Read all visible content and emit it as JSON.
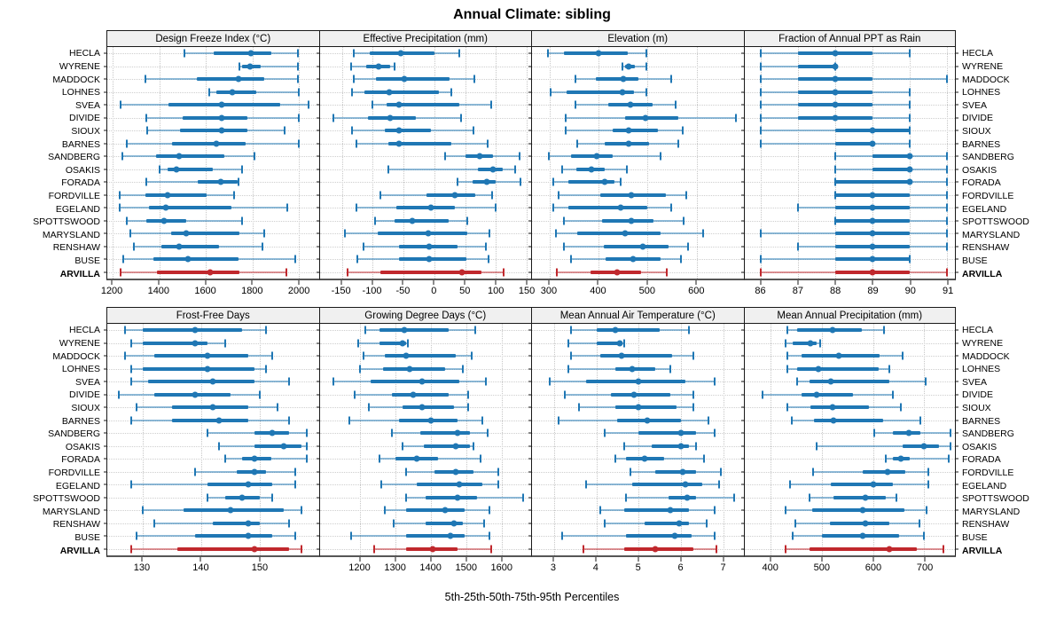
{
  "title": "Annual Climate: sibling",
  "footer": "5th-25th-50th-75th-95th Percentiles",
  "percentiles": [
    5,
    25,
    50,
    75,
    95
  ],
  "highlight_station": "ARVILLA",
  "colors": {
    "series_blue": "#1F77B4",
    "highlight_red": "#C0282D",
    "panel_header_bg": "#F0F0F0",
    "panel_border": "#1A1A1A",
    "gridline": "#C7C7C7"
  },
  "stations": [
    "HECLA",
    "WYRENE",
    "MADDOCK",
    "LOHNES",
    "SVEA",
    "DIVIDE",
    "SIOUX",
    "BARNES",
    "SANDBERG",
    "OSAKIS",
    "FORADA",
    "FORDVILLE",
    "EGELAND",
    "SPOTTSWOOD",
    "MARYSLAND",
    "RENSHAW",
    "BUSE",
    "ARVILLA"
  ],
  "chart_data": [
    {
      "type": "interval-percentile",
      "title": "Design Freeze Index (°C)",
      "xlim": [
        1177,
        2085
      ],
      "ticks": [
        1200,
        1400,
        1600,
        1800,
        2000
      ],
      "tick_labels": [
        "1200",
        "1400",
        "1600",
        "1800",
        "2000"
      ],
      "values": [
        [
          1510,
          1635,
          1795,
          1880,
          1995
        ],
        [
          1745,
          1755,
          1790,
          1835,
          1995
        ],
        [
          1340,
          1560,
          1740,
          1850,
          1995
        ],
        [
          1615,
          1645,
          1715,
          1815,
          2000
        ],
        [
          1235,
          1440,
          1670,
          1920,
          2040
        ],
        [
          1345,
          1500,
          1670,
          1780,
          2000
        ],
        [
          1350,
          1490,
          1670,
          1780,
          1940
        ],
        [
          1260,
          1455,
          1645,
          1770,
          2000
        ],
        [
          1240,
          1385,
          1485,
          1680,
          1810
        ],
        [
          1400,
          1435,
          1475,
          1630,
          1755
        ],
        [
          1345,
          1565,
          1665,
          1735,
          1740
        ],
        [
          1230,
          1340,
          1435,
          1605,
          1720
        ],
        [
          1230,
          1355,
          1430,
          1710,
          1950
        ],
        [
          1260,
          1345,
          1420,
          1515,
          1755
        ],
        [
          1275,
          1450,
          1515,
          1745,
          1850
        ],
        [
          1290,
          1410,
          1485,
          1655,
          1845
        ],
        [
          1245,
          1375,
          1525,
          1740,
          1985
        ],
        [
          1235,
          1390,
          1620,
          1745,
          1945
        ]
      ]
    },
    {
      "type": "interval-percentile",
      "title": "Effective Precipitation (mm)",
      "xlim": [
        -186,
        157
      ],
      "ticks": [
        -150,
        -100,
        -50,
        0,
        50,
        100,
        150
      ],
      "tick_labels": [
        "-150",
        "-100",
        "-50",
        "0",
        "50",
        "100",
        "150"
      ],
      "values": [
        [
          -130,
          -105,
          -55,
          0,
          40
        ],
        [
          -135,
          -110,
          -90,
          -72,
          -65
        ],
        [
          -130,
          -95,
          -48,
          25,
          65
        ],
        [
          -133,
          -113,
          -73,
          8,
          27
        ],
        [
          -100,
          -78,
          -57,
          40,
          92
        ],
        [
          -163,
          -108,
          -72,
          -30,
          43
        ],
        [
          -133,
          -80,
          -57,
          -5,
          63
        ],
        [
          -127,
          -75,
          -57,
          27,
          87
        ],
        [
          18,
          51,
          74,
          95,
          139
        ],
        [
          -74,
          70,
          95,
          111,
          131
        ],
        [
          38,
          62,
          85,
          99,
          140
        ],
        [
          -88,
          -12,
          34,
          67,
          94
        ],
        [
          -127,
          -61,
          -5,
          33,
          100
        ],
        [
          -96,
          -64,
          -36,
          23,
          54
        ],
        [
          -145,
          -92,
          -10,
          53,
          90
        ],
        [
          -115,
          -57,
          -8,
          37,
          83
        ],
        [
          -125,
          -57,
          -8,
          52,
          88
        ],
        [
          -140,
          -88,
          45,
          77,
          113
        ]
      ]
    },
    {
      "type": "interval-percentile",
      "title": "Elevation (m)",
      "xlim": [
        264,
        696
      ],
      "ticks": [
        300,
        400,
        500,
        600
      ],
      "tick_labels": [
        "300",
        "400",
        "500",
        "600"
      ],
      "values": [
        [
          297,
          330,
          400,
          460,
          497
        ],
        [
          448,
          455,
          462,
          475,
          498
        ],
        [
          352,
          395,
          450,
          482,
          548
        ],
        [
          302,
          335,
          448,
          472,
          498
        ],
        [
          352,
          420,
          465,
          510,
          557
        ],
        [
          332,
          455,
          495,
          563,
          680
        ],
        [
          333,
          428,
          462,
          522,
          572
        ],
        [
          357,
          413,
          462,
          503,
          563
        ],
        [
          298,
          343,
          397,
          428,
          527
        ],
        [
          325,
          355,
          385,
          413,
          458
        ],
        [
          308,
          338,
          412,
          432,
          445
        ],
        [
          318,
          403,
          467,
          538,
          580
        ],
        [
          307,
          338,
          445,
          500,
          548
        ],
        [
          330,
          408,
          467,
          513,
          573
        ],
        [
          312,
          357,
          455,
          527,
          613
        ],
        [
          330,
          410,
          490,
          543,
          583
        ],
        [
          343,
          415,
          470,
          527,
          568
        ],
        [
          315,
          383,
          438,
          487,
          540
        ]
      ]
    },
    {
      "type": "interval-percentile",
      "title": "Fraction of Annual PPT as Rain",
      "xlim": [
        85.55,
        91.21
      ],
      "ticks": [
        86,
        87,
        88,
        89,
        90,
        91
      ],
      "tick_labels": [
        "86",
        "87",
        "88",
        "89",
        "90",
        "91"
      ],
      "values": [
        [
          86,
          87,
          88,
          89,
          90
        ],
        [
          86,
          87,
          88,
          88,
          88
        ],
        [
          86,
          87,
          88,
          89,
          91
        ],
        [
          86,
          87,
          88,
          89,
          90
        ],
        [
          86,
          87,
          88,
          89,
          90
        ],
        [
          86,
          87,
          88,
          89,
          90
        ],
        [
          86,
          88,
          89,
          90,
          90
        ],
        [
          86,
          88,
          89,
          89,
          90
        ],
        [
          88,
          89,
          90,
          90,
          91
        ],
        [
          88,
          89,
          90,
          90,
          91
        ],
        [
          88,
          88,
          90,
          90,
          91
        ],
        [
          88,
          88,
          89,
          90,
          91
        ],
        [
          87,
          88,
          89,
          90,
          91
        ],
        [
          88,
          88,
          89,
          90,
          91
        ],
        [
          86,
          88,
          89,
          90,
          91
        ],
        [
          87,
          88,
          89,
          90,
          91
        ],
        [
          86,
          88,
          89,
          90,
          90
        ],
        [
          86,
          88,
          89,
          90,
          91
        ]
      ]
    },
    {
      "type": "interval-percentile",
      "title": "Frost-Free Days",
      "xlim": [
        124,
        160
      ],
      "ticks": [
        130,
        140,
        150
      ],
      "tick_labels": [
        "130",
        "140",
        "150"
      ],
      "values": [
        [
          127,
          130,
          139,
          147,
          151
        ],
        [
          128,
          130,
          139,
          141,
          144
        ],
        [
          127,
          132,
          141,
          148,
          152
        ],
        [
          128,
          130,
          141,
          149,
          151
        ],
        [
          128,
          131,
          142,
          149,
          155
        ],
        [
          126,
          132,
          139,
          145,
          150
        ],
        [
          129,
          135,
          142,
          148,
          153
        ],
        [
          128,
          135,
          143,
          148,
          155
        ],
        [
          141,
          149,
          152,
          155,
          158
        ],
        [
          143,
          149,
          154,
          157,
          158
        ],
        [
          144,
          147,
          149,
          152,
          158
        ],
        [
          139,
          146,
          149,
          151,
          156
        ],
        [
          128,
          141,
          148,
          152,
          156
        ],
        [
          141,
          144,
          147,
          150,
          152
        ],
        [
          130,
          137,
          145,
          154,
          157
        ],
        [
          132,
          142,
          148,
          150,
          155
        ],
        [
          129,
          139,
          148,
          152,
          156
        ],
        [
          128,
          136,
          149,
          155,
          157
        ]
      ]
    },
    {
      "type": "interval-percentile",
      "title": "Growing Degree Days (°C)",
      "xlim": [
        1085,
        1683
      ],
      "ticks": [
        1200,
        1300,
        1400,
        1500,
        1600
      ],
      "tick_labels": [
        "1200",
        "1300",
        "1400",
        "1500",
        "1600"
      ],
      "values": [
        [
          1215,
          1255,
          1325,
          1450,
          1525
        ],
        [
          1195,
          1255,
          1320,
          1330,
          1335
        ],
        [
          1210,
          1270,
          1330,
          1470,
          1515
        ],
        [
          1200,
          1265,
          1340,
          1440,
          1490
        ],
        [
          1125,
          1230,
          1375,
          1480,
          1555
        ],
        [
          1185,
          1290,
          1350,
          1450,
          1505
        ],
        [
          1225,
          1320,
          1375,
          1465,
          1505
        ],
        [
          1170,
          1310,
          1400,
          1475,
          1545
        ],
        [
          1290,
          1370,
          1475,
          1510,
          1560
        ],
        [
          1320,
          1380,
          1470,
          1510,
          1520
        ],
        [
          1255,
          1300,
          1360,
          1420,
          1540
        ],
        [
          1330,
          1410,
          1470,
          1520,
          1590
        ],
        [
          1260,
          1360,
          1480,
          1545,
          1590
        ],
        [
          1330,
          1385,
          1475,
          1530,
          1660
        ],
        [
          1270,
          1330,
          1440,
          1495,
          1565
        ],
        [
          1295,
          1385,
          1465,
          1490,
          1550
        ],
        [
          1175,
          1330,
          1455,
          1495,
          1565
        ],
        [
          1240,
          1330,
          1405,
          1475,
          1570
        ]
      ]
    },
    {
      "type": "interval-percentile",
      "title": "Mean Annual Air Temperature (°C)",
      "xlim": [
        2.48,
        7.48
      ],
      "ticks": [
        3,
        4,
        5,
        6,
        7
      ],
      "tick_labels": [
        "3",
        "4",
        "5",
        "6",
        "7"
      ],
      "values": [
        [
          3.4,
          4.0,
          4.45,
          5.5,
          6.2
        ],
        [
          3.35,
          4.0,
          4.55,
          4.6,
          4.65
        ],
        [
          3.4,
          4.1,
          4.6,
          5.8,
          6.3
        ],
        [
          3.35,
          4.45,
          4.85,
          5.4,
          5.75
        ],
        [
          2.9,
          3.75,
          5.0,
          6.1,
          6.8
        ],
        [
          3.25,
          4.35,
          4.9,
          5.75,
          6.3
        ],
        [
          3.6,
          4.45,
          5.0,
          5.9,
          6.3
        ],
        [
          3.1,
          4.5,
          5.2,
          6.0,
          6.65
        ],
        [
          4.2,
          5.0,
          6.0,
          6.35,
          6.8
        ],
        [
          4.65,
          5.3,
          6.0,
          6.2,
          6.35
        ],
        [
          4.45,
          4.7,
          5.15,
          5.6,
          6.55
        ],
        [
          4.8,
          5.4,
          6.05,
          6.35,
          6.95
        ],
        [
          3.75,
          4.85,
          6.1,
          6.5,
          6.9
        ],
        [
          4.7,
          5.7,
          6.15,
          6.35,
          7.25
        ],
        [
          4.1,
          4.65,
          5.75,
          6.2,
          6.8
        ],
        [
          4.2,
          5.15,
          5.95,
          6.2,
          6.6
        ],
        [
          3.2,
          4.7,
          5.85,
          6.25,
          6.8
        ],
        [
          3.7,
          4.65,
          5.4,
          6.3,
          6.85
        ]
      ]
    },
    {
      "type": "interval-percentile",
      "title": "Mean Annual Precipitation (mm)",
      "xlim": [
        348,
        760
      ],
      "ticks": [
        400,
        500,
        600,
        700
      ],
      "tick_labels": [
        "400",
        "500",
        "600",
        "700"
      ],
      "values": [
        [
          432,
          452,
          520,
          578,
          622
        ],
        [
          428,
          442,
          478,
          490,
          497
        ],
        [
          432,
          460,
          532,
          612,
          658
        ],
        [
          433,
          452,
          492,
          610,
          632
        ],
        [
          452,
          475,
          518,
          632,
          703
        ],
        [
          383,
          460,
          490,
          560,
          638
        ],
        [
          432,
          478,
          520,
          592,
          655
        ],
        [
          440,
          485,
          522,
          620,
          692
        ],
        [
          603,
          638,
          670,
          692,
          752
        ],
        [
          490,
          658,
          700,
          728,
          752
        ],
        [
          625,
          638,
          655,
          672,
          748
        ],
        [
          482,
          580,
          628,
          662,
          708
        ],
        [
          438,
          518,
          600,
          638,
          708
        ],
        [
          475,
          522,
          585,
          625,
          645
        ],
        [
          428,
          480,
          580,
          662,
          705
        ],
        [
          448,
          515,
          585,
          632,
          690
        ],
        [
          442,
          500,
          580,
          650,
          700
        ],
        [
          428,
          475,
          632,
          685,
          738
        ]
      ]
    }
  ]
}
